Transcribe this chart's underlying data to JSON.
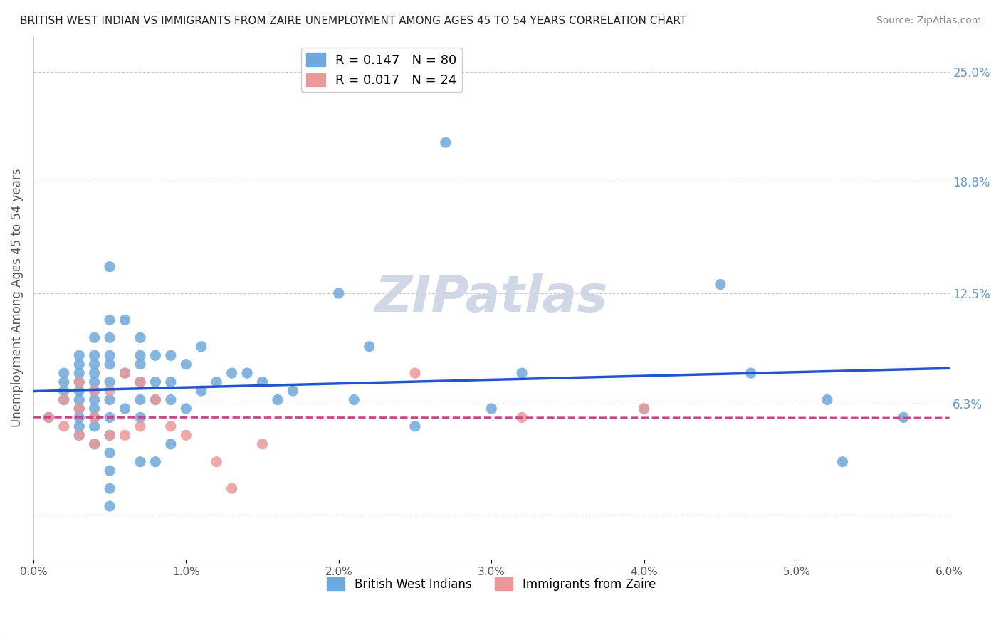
{
  "title": "BRITISH WEST INDIAN VS IMMIGRANTS FROM ZAIRE UNEMPLOYMENT AMONG AGES 45 TO 54 YEARS CORRELATION CHART",
  "source": "Source: ZipAtlas.com",
  "xlabel_bottom": "",
  "ylabel": "Unemployment Among Ages 45 to 54 years",
  "xmin": 0.0,
  "xmax": 0.06,
  "ymin": -0.01,
  "ymax": 0.26,
  "x_tick_labels": [
    "0.0%",
    "1.0%",
    "2.0%",
    "3.0%",
    "4.0%",
    "5.0%",
    "6.0%"
  ],
  "y_tick_positions": [
    0.0,
    0.063,
    0.125,
    0.188,
    0.25
  ],
  "y_tick_labels": [
    "",
    "6.3%",
    "12.5%",
    "18.8%",
    "25.0%"
  ],
  "legend_bottom": [
    "British West Indians",
    "Immigrants from Zaire"
  ],
  "r_bwi": 0.147,
  "n_bwi": 80,
  "r_zaire": 0.017,
  "n_zaire": 24,
  "color_bwi": "#6fa8dc",
  "color_zaire": "#ea9999",
  "color_line_bwi": "#2255cc",
  "color_line_zaire": "#cc4488",
  "watermark": "ZIPatlas",
  "watermark_color": "#d0d8e8",
  "background_color": "#ffffff",
  "grid_color": "#cccccc",
  "bwi_x": [
    0.001,
    0.002,
    0.002,
    0.002,
    0.002,
    0.003,
    0.003,
    0.003,
    0.003,
    0.003,
    0.003,
    0.003,
    0.003,
    0.003,
    0.003,
    0.004,
    0.004,
    0.004,
    0.004,
    0.004,
    0.004,
    0.004,
    0.004,
    0.004,
    0.004,
    0.004,
    0.005,
    0.005,
    0.005,
    0.005,
    0.005,
    0.005,
    0.005,
    0.005,
    0.005,
    0.005,
    0.005,
    0.005,
    0.005,
    0.006,
    0.006,
    0.006,
    0.007,
    0.007,
    0.007,
    0.007,
    0.007,
    0.007,
    0.007,
    0.008,
    0.008,
    0.008,
    0.008,
    0.009,
    0.009,
    0.009,
    0.009,
    0.01,
    0.01,
    0.011,
    0.011,
    0.012,
    0.013,
    0.014,
    0.015,
    0.016,
    0.017,
    0.02,
    0.021,
    0.022,
    0.025,
    0.027,
    0.03,
    0.032,
    0.04,
    0.045,
    0.047,
    0.052,
    0.053,
    0.057
  ],
  "bwi_y": [
    0.055,
    0.08,
    0.075,
    0.07,
    0.065,
    0.09,
    0.085,
    0.08,
    0.075,
    0.07,
    0.065,
    0.06,
    0.055,
    0.05,
    0.045,
    0.1,
    0.09,
    0.085,
    0.08,
    0.075,
    0.07,
    0.065,
    0.06,
    0.055,
    0.05,
    0.04,
    0.14,
    0.11,
    0.1,
    0.09,
    0.085,
    0.075,
    0.065,
    0.055,
    0.045,
    0.035,
    0.025,
    0.015,
    0.005,
    0.11,
    0.08,
    0.06,
    0.1,
    0.09,
    0.085,
    0.075,
    0.065,
    0.055,
    0.03,
    0.09,
    0.075,
    0.065,
    0.03,
    0.09,
    0.075,
    0.065,
    0.04,
    0.085,
    0.06,
    0.095,
    0.07,
    0.075,
    0.08,
    0.08,
    0.075,
    0.065,
    0.07,
    0.125,
    0.065,
    0.095,
    0.05,
    0.21,
    0.06,
    0.08,
    0.06,
    0.13,
    0.08,
    0.065,
    0.03,
    0.055
  ],
  "zaire_x": [
    0.001,
    0.002,
    0.002,
    0.003,
    0.003,
    0.003,
    0.004,
    0.004,
    0.004,
    0.005,
    0.005,
    0.006,
    0.006,
    0.007,
    0.007,
    0.008,
    0.009,
    0.01,
    0.012,
    0.013,
    0.015,
    0.025,
    0.032,
    0.04
  ],
  "zaire_y": [
    0.055,
    0.065,
    0.05,
    0.075,
    0.06,
    0.045,
    0.07,
    0.055,
    0.04,
    0.07,
    0.045,
    0.08,
    0.045,
    0.075,
    0.05,
    0.065,
    0.05,
    0.045,
    0.03,
    0.015,
    0.04,
    0.08,
    0.055,
    0.06
  ]
}
